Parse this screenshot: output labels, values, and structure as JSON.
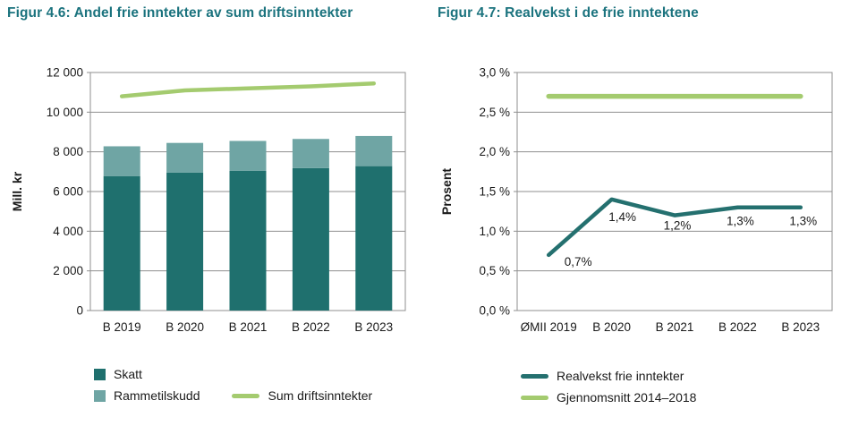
{
  "colors": {
    "title": "#1B737E",
    "skatt": "#1F706E",
    "rammetilskudd": "#6FA5A4",
    "green": "#A4CB6F",
    "teal_line": "#24706F",
    "grid": "#8F8F8F",
    "border": "#8F8F8F",
    "text": "#1A1A1A"
  },
  "chart_data": [
    {
      "type": "bar",
      "title": "Figur 4.6: Andel frie inntekter av sum driftsinntekter",
      "categories": [
        "B 2019",
        "B 2020",
        "B 2021",
        "B 2022",
        "B 2023"
      ],
      "series": [
        {
          "name": "Skatt",
          "role": "bar-stacked",
          "color_key": "skatt",
          "values": [
            6780,
            6950,
            7050,
            7180,
            7280
          ]
        },
        {
          "name": "Rammetilskudd",
          "role": "bar-stacked",
          "color_key": "rammetilskudd",
          "values": [
            1500,
            1500,
            1500,
            1470,
            1520
          ]
        },
        {
          "name": "Sum driftsinntekter",
          "role": "line",
          "color_key": "green",
          "values": [
            10800,
            11100,
            11200,
            11300,
            11450
          ]
        }
      ],
      "ylabel": "Mill. kr",
      "ylim": [
        0,
        12000
      ],
      "yticks": [
        {
          "value": 0,
          "label": "0"
        },
        {
          "value": 2000,
          "label": "2 000"
        },
        {
          "value": 4000,
          "label": "4 000"
        },
        {
          "value": 6000,
          "label": "6 000"
        },
        {
          "value": 8000,
          "label": "8 000"
        },
        {
          "value": 10000,
          "label": "10 000"
        },
        {
          "value": 12000,
          "label": "12 000"
        }
      ],
      "grid": true,
      "legend_position": "bottom"
    },
    {
      "type": "line",
      "title": "Figur 4.7: Realvekst i de frie inntektene",
      "categories": [
        "ØMII 2019",
        "B 2020",
        "B 2021",
        "B 2022",
        "B 2023"
      ],
      "series": [
        {
          "name": "Realvekst frie inntekter",
          "role": "line",
          "color_key": "teal_line",
          "values": [
            0.7,
            1.4,
            1.2,
            1.3,
            1.3
          ],
          "labels": [
            "0,7%",
            "1,4%",
            "1,2%",
            "1,3%",
            "1,3%"
          ]
        },
        {
          "name": "Gjennomsnitt 2014–2018",
          "role": "line",
          "color_key": "green",
          "values": [
            2.7,
            2.7,
            2.7,
            2.7,
            2.7
          ]
        }
      ],
      "ylabel": "Prosent",
      "ylim": [
        0,
        3
      ],
      "yticks": [
        {
          "value": 0,
          "label": "0,0 %"
        },
        {
          "value": 0.5,
          "label": "0,5 %"
        },
        {
          "value": 1.0,
          "label": "1,0 %"
        },
        {
          "value": 1.5,
          "label": "1,5 %"
        },
        {
          "value": 2.0,
          "label": "2,0 %"
        },
        {
          "value": 2.5,
          "label": "2,5 %"
        },
        {
          "value": 3.0,
          "label": "3,0 %"
        }
      ],
      "grid": true,
      "legend_position": "bottom"
    }
  ]
}
